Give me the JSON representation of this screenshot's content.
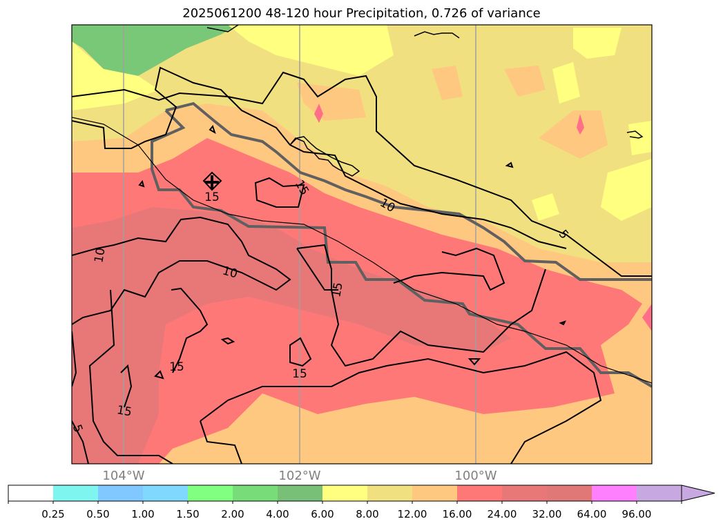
{
  "title": "2025061200 48-120 hour Precipitation, 0.726 of variance",
  "longitude_labels": [
    "104°W",
    "102°W",
    "100°W"
  ],
  "contour_labels": [
    "15",
    "15",
    "10",
    "5",
    "10",
    "10",
    "15",
    "15",
    "15",
    "15",
    "5"
  ],
  "colorbar": {
    "ticks": [
      "0.25",
      "0.50",
      "1.00",
      "1.50",
      "2.00",
      "4.00",
      "6.00",
      "8.00",
      "12.00",
      "16.00",
      "24.00",
      "32.00",
      "64.00",
      "96.00"
    ],
    "colors": [
      "#ffffff",
      "#7ff5f0",
      "#80c8ff",
      "#80d8ff",
      "#80ff80",
      "#78dc78",
      "#78c078",
      "#ffff80",
      "#f0e080",
      "#ffc880",
      "#ff7878",
      "#e87878",
      "#e07878",
      "#ff80ff",
      "#c8a8e0"
    ],
    "extend": "max"
  },
  "colors": {
    "yellow": "#ffff80",
    "khaki": "#f0e080",
    "orange": "#ffc880",
    "red": "#ff7878",
    "darkred": "#e87878",
    "green": "#78c878",
    "pink": "#ff7088",
    "gridline": "#a0a0a0",
    "boundary": "#606060"
  },
  "marker": "plus-marker"
}
